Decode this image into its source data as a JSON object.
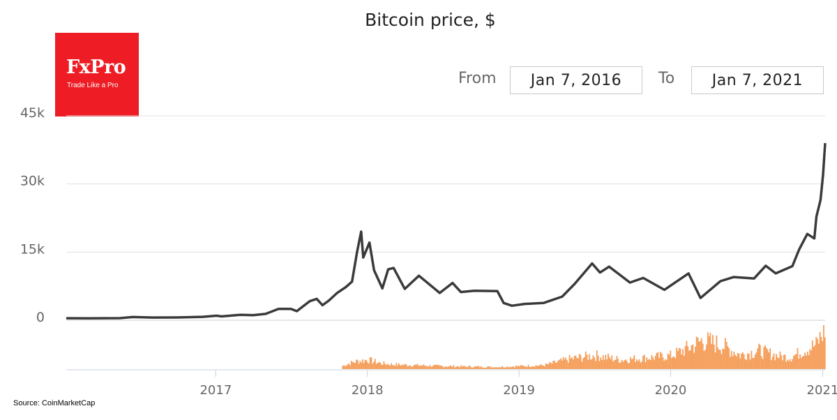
{
  "logo": {
    "brand": "FxPro",
    "tagline": "Trade Like a Pro"
  },
  "range": {
    "from_label": "From",
    "from_value": "Jan 7, 2016",
    "to_label": "To",
    "to_value": "Jan 7, 2021"
  },
  "source": "Source: CoinMarketCap",
  "colors": {
    "price_line": "#3a3a3c",
    "volume": "#f5a15f",
    "grid": "#e0e0e0",
    "logo_bg": "#ee1c24"
  },
  "chart_data": {
    "type": "line",
    "title": "Bitcoin price, $",
    "xlabel": "",
    "ylabel": "",
    "x_range": [
      "2016-01-07",
      "2021-01-07"
    ],
    "ylim": [
      0,
      45000
    ],
    "y_ticks": [
      0,
      15000,
      30000,
      45000
    ],
    "y_tick_labels": [
      "0",
      "15k",
      "30k",
      "45k"
    ],
    "x_ticks": [
      "2017-01-01",
      "2018-01-01",
      "2019-01-01",
      "2020-01-01",
      "2021-01-01"
    ],
    "x_tick_labels": [
      "2017",
      "2018",
      "2019",
      "2020",
      "2021"
    ],
    "grid": true,
    "series": [
      {
        "type": "line",
        "points": [
          [
            "2016-01-07",
            450
          ],
          [
            "2016-03-01",
            430
          ],
          [
            "2016-05-15",
            460
          ],
          [
            "2016-06-15",
            700
          ],
          [
            "2016-08-01",
            600
          ],
          [
            "2016-10-01",
            620
          ],
          [
            "2016-12-01",
            750
          ],
          [
            "2017-01-03",
            1000
          ],
          [
            "2017-01-15",
            850
          ],
          [
            "2017-03-01",
            1200
          ],
          [
            "2017-04-01",
            1100
          ],
          [
            "2017-05-01",
            1400
          ],
          [
            "2017-06-01",
            2500
          ],
          [
            "2017-07-01",
            2500
          ],
          [
            "2017-07-15",
            2000
          ],
          [
            "2017-08-15",
            4200
          ],
          [
            "2017-09-01",
            4700
          ],
          [
            "2017-09-15",
            3300
          ],
          [
            "2017-10-01",
            4400
          ],
          [
            "2017-10-20",
            6000
          ],
          [
            "2017-11-10",
            7300
          ],
          [
            "2017-11-25",
            8500
          ],
          [
            "2017-12-07",
            15000
          ],
          [
            "2017-12-17",
            19500
          ],
          [
            "2017-12-22",
            13800
          ],
          [
            "2018-01-06",
            17100
          ],
          [
            "2018-01-17",
            11000
          ],
          [
            "2018-02-06",
            7000
          ],
          [
            "2018-02-20",
            11200
          ],
          [
            "2018-03-05",
            11500
          ],
          [
            "2018-04-01",
            6900
          ],
          [
            "2018-05-05",
            9800
          ],
          [
            "2018-06-24",
            6000
          ],
          [
            "2018-07-25",
            8200
          ],
          [
            "2018-08-14",
            6200
          ],
          [
            "2018-09-15",
            6500
          ],
          [
            "2018-11-10",
            6400
          ],
          [
            "2018-11-25",
            3800
          ],
          [
            "2018-12-15",
            3200
          ],
          [
            "2019-01-15",
            3600
          ],
          [
            "2019-03-01",
            3800
          ],
          [
            "2019-04-15",
            5200
          ],
          [
            "2019-05-15",
            8000
          ],
          [
            "2019-06-26",
            12500
          ],
          [
            "2019-07-15",
            10500
          ],
          [
            "2019-08-06",
            11800
          ],
          [
            "2019-09-25",
            8300
          ],
          [
            "2019-10-27",
            9300
          ],
          [
            "2019-12-17",
            6700
          ],
          [
            "2020-02-13",
            10300
          ],
          [
            "2020-03-13",
            4900
          ],
          [
            "2020-04-30",
            8600
          ],
          [
            "2020-06-01",
            9500
          ],
          [
            "2020-07-20",
            9200
          ],
          [
            "2020-08-17",
            12000
          ],
          [
            "2020-09-10",
            10300
          ],
          [
            "2020-10-20",
            11900
          ],
          [
            "2020-11-05",
            15500
          ],
          [
            "2020-11-25",
            19000
          ],
          [
            "2020-12-12",
            18000
          ],
          [
            "2020-12-17",
            22800
          ],
          [
            "2020-12-27",
            26500
          ],
          [
            "2021-01-02",
            32000
          ],
          [
            "2021-01-07",
            39000
          ]
        ]
      },
      {
        "type": "bar",
        "points": [
          [
            "2017-11-01",
            0.08
          ],
          [
            "2017-12-01",
            0.18
          ],
          [
            "2018-01-01",
            0.22
          ],
          [
            "2018-02-01",
            0.14
          ],
          [
            "2018-03-01",
            0.11
          ],
          [
            "2018-05-01",
            0.09
          ],
          [
            "2018-07-01",
            0.07
          ],
          [
            "2018-09-01",
            0.06
          ],
          [
            "2018-11-01",
            0.05
          ],
          [
            "2019-01-01",
            0.07
          ],
          [
            "2019-03-01",
            0.09
          ],
          [
            "2019-05-01",
            0.24
          ],
          [
            "2019-07-01",
            0.33
          ],
          [
            "2019-09-01",
            0.22
          ],
          [
            "2019-11-01",
            0.27
          ],
          [
            "2020-01-01",
            0.32
          ],
          [
            "2020-02-15",
            0.52
          ],
          [
            "2020-03-15",
            0.68
          ],
          [
            "2020-05-01",
            0.58
          ],
          [
            "2020-06-15",
            0.34
          ],
          [
            "2020-08-01",
            0.44
          ],
          [
            "2020-09-15",
            0.31
          ],
          [
            "2020-10-15",
            0.28
          ],
          [
            "2020-11-15",
            0.45
          ],
          [
            "2020-12-15",
            0.58
          ],
          [
            "2021-01-07",
            0.99
          ]
        ]
      }
    ]
  }
}
